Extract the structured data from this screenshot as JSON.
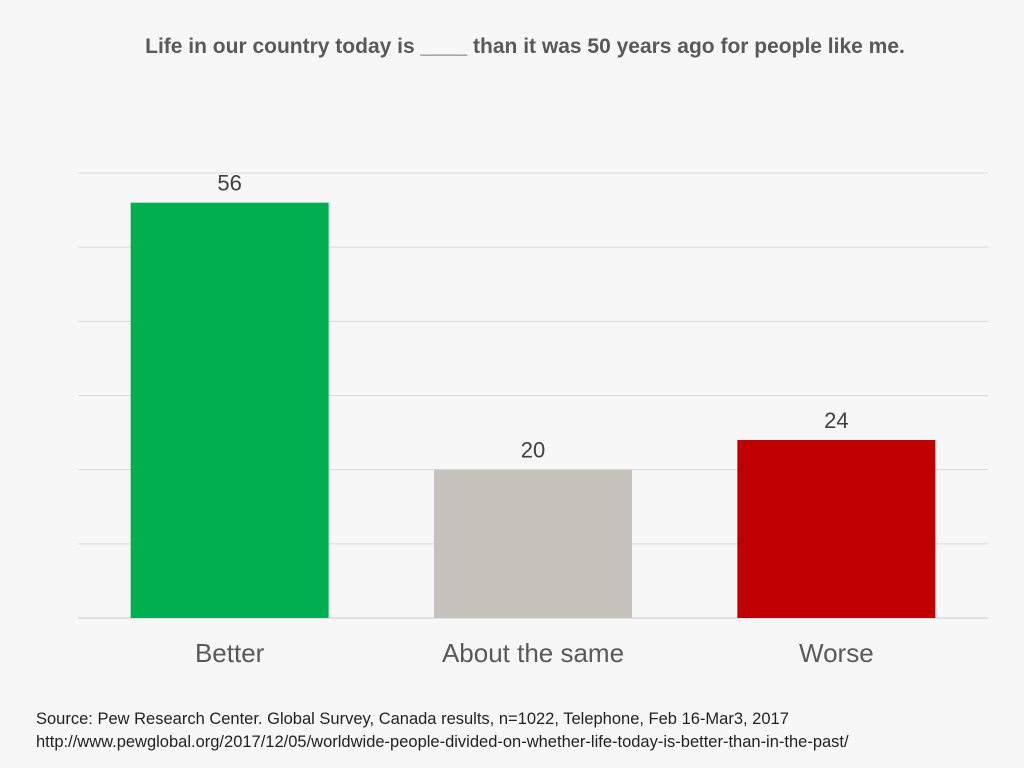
{
  "chart_data": {
    "type": "bar",
    "title": "Life in our country today is ____ than it was 50 years ago for people like me.",
    "categories": [
      "Better",
      "About the same",
      "Worse"
    ],
    "values": [
      56,
      20,
      24
    ],
    "colors": [
      "#00b050",
      "#c6c1ba",
      "#c00000"
    ],
    "ylim": [
      0,
      60
    ],
    "grid": true,
    "legend": "none",
    "xlabel": "",
    "ylabel": ""
  },
  "source": {
    "line1": "Source:  Pew Research Center. Global Survey, Canada results, n=1022, Telephone, Feb 16-Mar3, 2017",
    "line2": "http://www.pewglobal.org/2017/12/05/worldwide-people-divided-on-whether-life-today-is-better-than-in-the-past/"
  },
  "colors": {
    "background": "#f7f7f7",
    "gridline": "#d9d9d9",
    "title_text": "#595959",
    "label_text": "#404040"
  }
}
